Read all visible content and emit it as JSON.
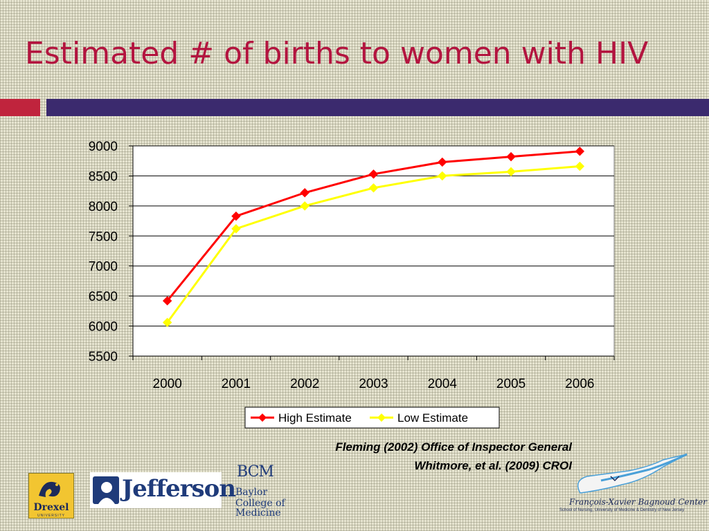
{
  "slide": {
    "title": "Estimated # of births to women with HIV",
    "colors": {
      "title": "#b3143f",
      "bar_left": "#c0243d",
      "bar_right": "#3b2a6e"
    }
  },
  "chart_data": {
    "type": "line",
    "categories": [
      "2000",
      "2001",
      "2002",
      "2003",
      "2004",
      "2005",
      "2006"
    ],
    "series": [
      {
        "name": "High Estimate",
        "color": "#ff0000",
        "marker": "diamond",
        "values": [
          6420,
          7830,
          8220,
          8530,
          8730,
          8820,
          8910
        ]
      },
      {
        "name": "Low Estimate",
        "color": "#ffff00",
        "marker": "diamond",
        "values": [
          6060,
          7620,
          8000,
          8300,
          8500,
          8570,
          8660
        ]
      }
    ],
    "yticks": [
      "5500",
      "6000",
      "6500",
      "7000",
      "7500",
      "8000",
      "8500",
      "9000"
    ],
    "ylim": [
      5500,
      9000
    ],
    "grid": true,
    "legend_position": "bottom",
    "title": "",
    "xlabel": "",
    "ylabel": ""
  },
  "citations": [
    "Fleming (2002) Office of Inspector General",
    "Whitmore, et al. (2009) CROI"
  ],
  "logos": {
    "drexel": {
      "name": "Drexel",
      "sub": "UNIVERSITY"
    },
    "jefferson": {
      "name": "Jefferson"
    },
    "baylor": {
      "abbr": "BCM",
      "line1": "Baylor",
      "line2": "College of",
      "line3": "Medicine"
    },
    "fxb": {
      "name": "François-Xavier Bagnoud Center",
      "sub": "School of Nursing, University of Medicine & Dentistry of New Jersey"
    }
  }
}
